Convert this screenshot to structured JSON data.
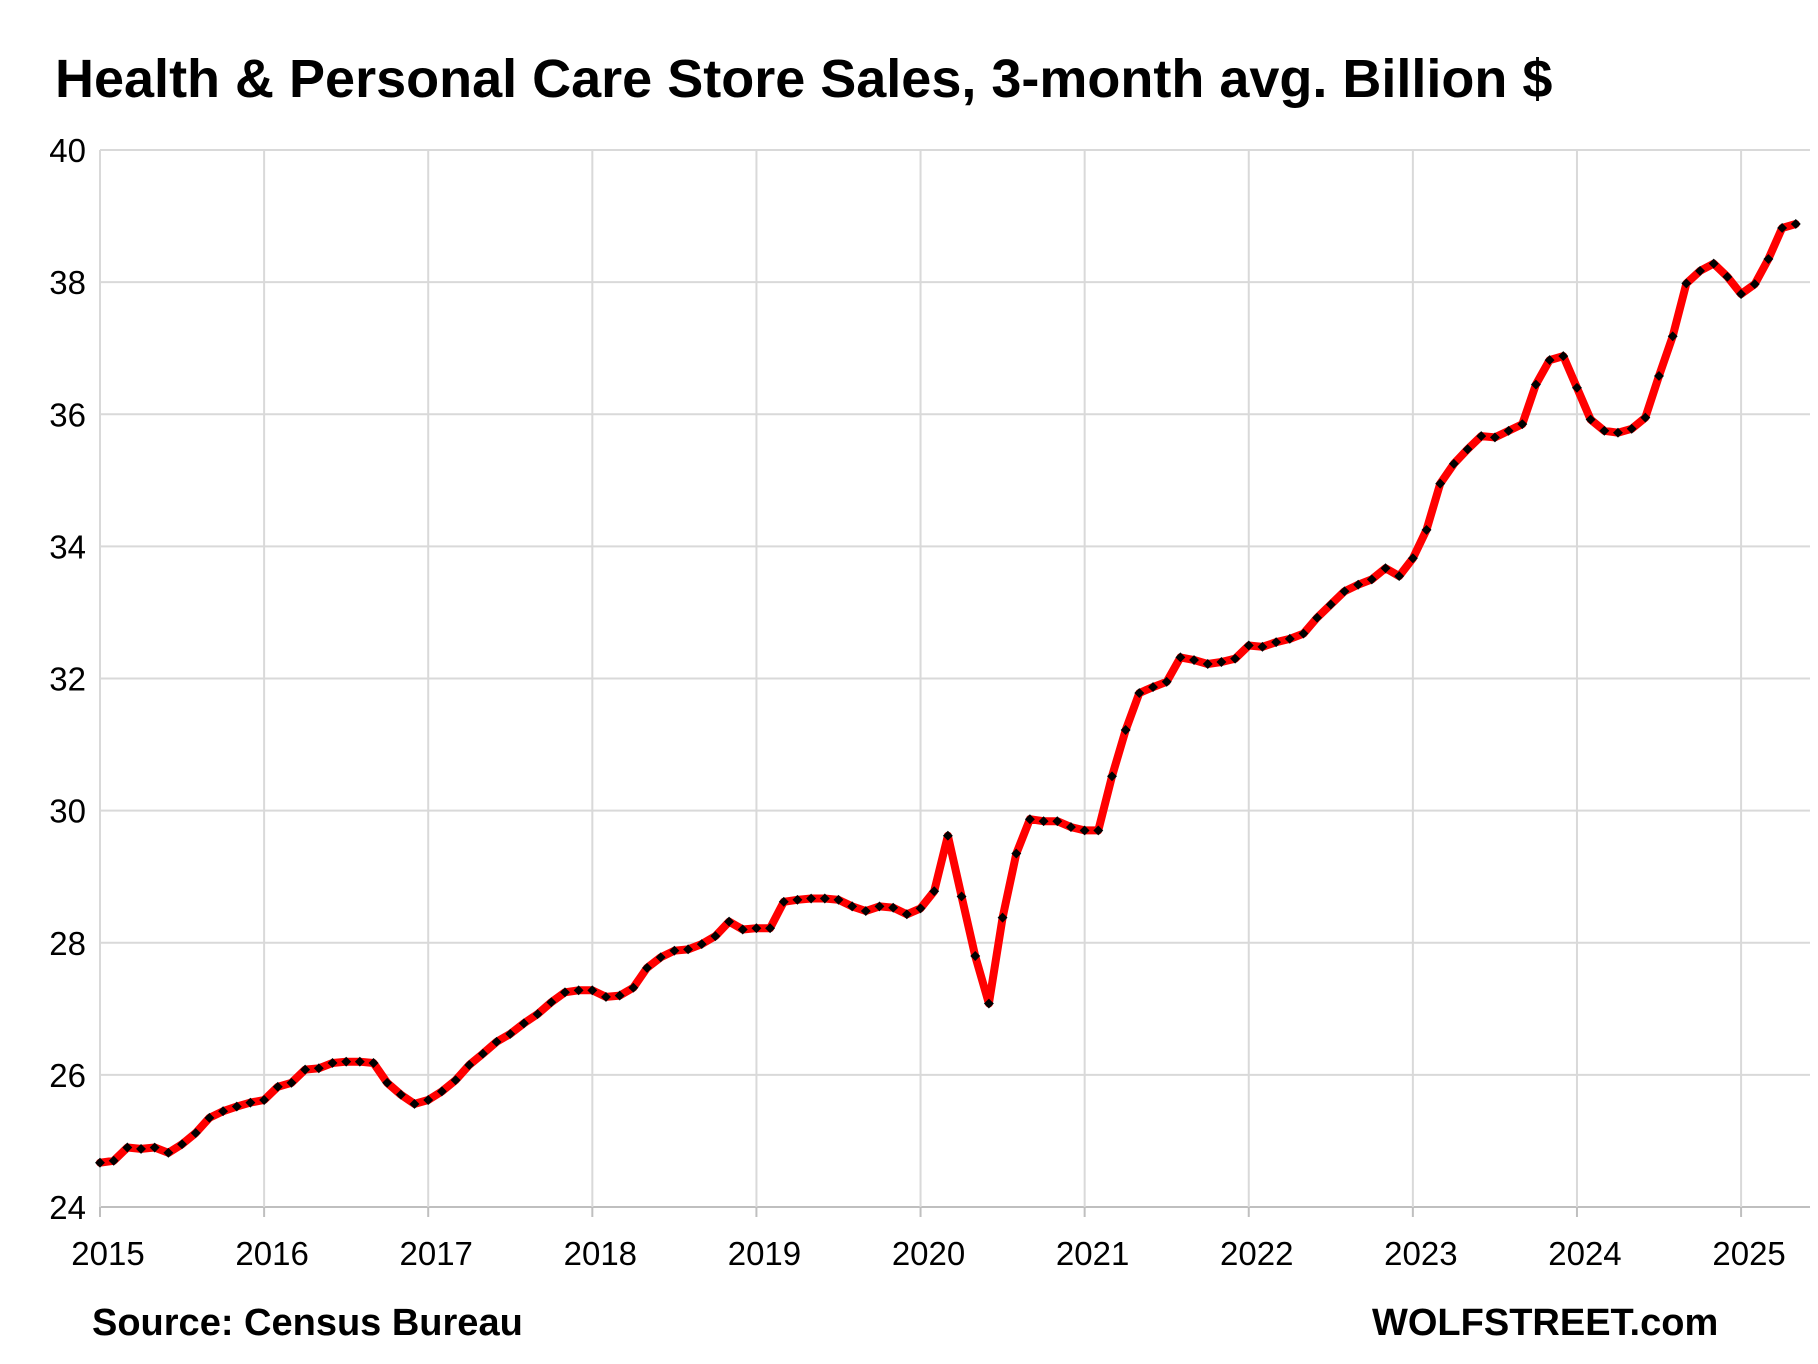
{
  "chart_data": {
    "type": "line",
    "title": "Health &  Personal Care Store Sales, 3-month avg. Billion $",
    "xlabel": "",
    "ylabel": "",
    "ylim": [
      24,
      40
    ],
    "yticks": [
      "24",
      "26",
      "28",
      "30",
      "32",
      "34",
      "36",
      "38",
      "40"
    ],
    "xlim": [
      2015.0,
      2025.42
    ],
    "xticks": [
      "2015",
      "2016",
      "2017",
      "2018",
      "2019",
      "2020",
      "2021",
      "2022",
      "2023",
      "2024",
      "2025"
    ],
    "grid": true,
    "legend": "none",
    "series": [
      {
        "color": "#ff0000",
        "marker_color": "#000000",
        "start": "2015-01",
        "frequency": "monthly",
        "values": [
          24.67,
          24.7,
          24.9,
          24.88,
          24.9,
          24.82,
          24.95,
          25.12,
          25.35,
          25.45,
          25.52,
          25.58,
          25.62,
          25.82,
          25.88,
          26.08,
          26.1,
          26.18,
          26.2,
          26.2,
          26.18,
          25.88,
          25.7,
          25.56,
          25.62,
          25.75,
          25.92,
          26.15,
          26.32,
          26.5,
          26.62,
          26.78,
          26.92,
          27.1,
          27.25,
          27.28,
          27.28,
          27.18,
          27.2,
          27.32,
          27.62,
          27.78,
          27.88,
          27.9,
          27.98,
          28.1,
          28.32,
          28.2,
          28.22,
          28.22,
          28.62,
          28.65,
          28.67,
          28.67,
          28.65,
          28.55,
          28.48,
          28.55,
          28.53,
          28.43,
          28.52,
          28.78,
          29.62,
          28.7,
          27.8,
          27.08,
          28.38,
          29.35,
          29.87,
          29.84,
          29.84,
          29.75,
          29.7,
          29.7,
          30.52,
          31.22,
          31.78,
          31.87,
          31.95,
          32.32,
          32.28,
          32.22,
          32.25,
          32.3,
          32.5,
          32.48,
          32.55,
          32.6,
          32.68,
          32.92,
          33.12,
          33.32,
          33.42,
          33.5,
          33.67,
          33.55,
          33.82,
          34.25,
          34.95,
          35.25,
          35.47,
          35.67,
          35.65,
          35.75,
          35.85,
          36.45,
          36.82,
          36.88,
          36.4,
          35.92,
          35.75,
          35.72,
          35.78,
          35.95,
          36.58,
          37.18,
          37.98,
          38.17,
          38.28,
          38.08,
          37.82,
          37.97,
          38.35,
          38.82,
          38.88
        ]
      }
    ]
  },
  "footer": {
    "source": "Source: Census Bureau",
    "brand": "WOLFSTREET.com"
  }
}
